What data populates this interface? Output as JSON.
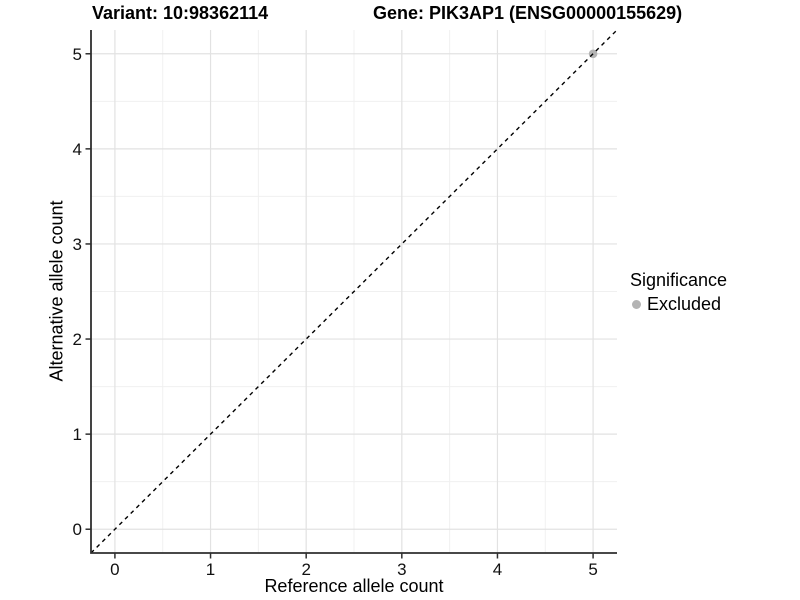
{
  "titles": {
    "variant": "Variant: 10:98362114",
    "gene": "Gene: PIK3AP1 (ENSG00000155629)"
  },
  "axes": {
    "x_label": "Reference allele count",
    "y_label": "Alternative allele count"
  },
  "legend": {
    "title": "Significance",
    "items": [
      {
        "label": "Excluded",
        "color": "#b4b4b4"
      }
    ]
  },
  "chart_data": {
    "type": "scatter",
    "title": "Variant: 10:98362114 — Gene: PIK3AP1 (ENSG00000155629)",
    "xlabel": "Reference allele count",
    "ylabel": "Alternative allele count",
    "xlim": [
      -0.25,
      5.25
    ],
    "ylim": [
      -0.25,
      5.25
    ],
    "x_ticks": [
      0,
      1,
      2,
      3,
      4,
      5
    ],
    "y_ticks": [
      0,
      1,
      2,
      3,
      4,
      5
    ],
    "grid": {
      "major": true,
      "minor": true
    },
    "legend_position": "right",
    "series": [
      {
        "name": "Excluded",
        "color": "#b4b4b4",
        "points": [
          {
            "x": 5,
            "y": 5
          }
        ]
      }
    ],
    "reference_line": {
      "kind": "identity",
      "style": "dashed",
      "color": "#000000",
      "from": [
        -0.25,
        -0.25
      ],
      "to": [
        5.25,
        5.25
      ]
    },
    "style_colors": {
      "grid_major": "#e2e2e2",
      "grid_minor": "#f0f0f0",
      "axis_line": "#2f2f2f",
      "tick_text": "#111111",
      "point": "#b4b4b4"
    }
  }
}
